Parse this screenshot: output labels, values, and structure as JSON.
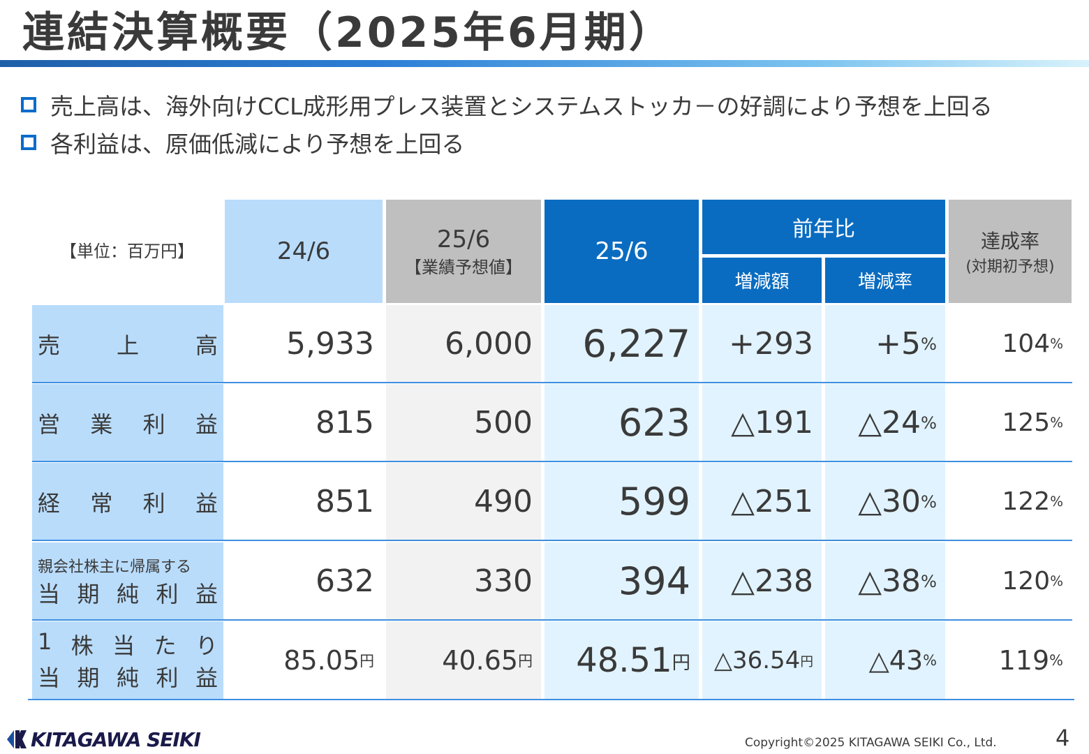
{
  "title": "連結決算概要（2025年6月期）",
  "bullets": [
    "売上高は、海外向けCCL成形用プレス装置とシステムストッカ－の好調により予想を上回る",
    "各利益は、原価低減により予想を上回る"
  ],
  "table": {
    "unit": "【単位：百万円】",
    "headers": {
      "prev": "24/6",
      "forecast": "25/6",
      "forecast_sub": "【業績予想値】",
      "current": "25/6",
      "yoy": "前年比",
      "diff": "増減額",
      "rate": "増減率",
      "achievement": "達成率",
      "achievement_sub": "(対期初予想)"
    },
    "rows": [
      {
        "label_chars": [
          "売",
          "上",
          "高"
        ],
        "prev": "5,933",
        "forecast": "6,000",
        "current": "6,227",
        "diff": "+293",
        "rate": "+5",
        "rate_unit": "%",
        "ach": "104",
        "ach_unit": "%"
      },
      {
        "label_chars": [
          "営",
          "業",
          "利",
          "益"
        ],
        "prev": "815",
        "forecast": "500",
        "current": "623",
        "diff": "△191",
        "rate": "△24",
        "rate_unit": "%",
        "ach": "125",
        "ach_unit": "%"
      },
      {
        "label_chars": [
          "経",
          "常",
          "利",
          "益"
        ],
        "prev": "851",
        "forecast": "490",
        "current": "599",
        "diff": "△251",
        "rate": "△30",
        "rate_unit": "%",
        "ach": "122",
        "ach_unit": "%"
      },
      {
        "label_top": "親会社株主に帰属する",
        "label_chars": [
          "当",
          "期",
          "純",
          "利",
          "益"
        ],
        "prev": "632",
        "forecast": "330",
        "current": "394",
        "diff": "△238",
        "rate": "△38",
        "rate_unit": "%",
        "ach": "120",
        "ach_unit": "%"
      },
      {
        "label_chars_top": [
          "1",
          "株",
          "当",
          "た",
          "り"
        ],
        "label_chars": [
          "当",
          "期",
          "純",
          "利",
          "益"
        ],
        "prev": "85.05",
        "prev_unit": "円",
        "forecast": "40.65",
        "forecast_unit": "円",
        "current": "48.51",
        "current_unit": "円",
        "diff": "△36.54",
        "diff_unit": "円",
        "rate": "△43",
        "rate_unit": "%",
        "ach": "119",
        "ach_unit": "%"
      }
    ]
  },
  "footer": {
    "logo": "KITAGAWA SEIKI",
    "copyright": "Copyright©2025 KITAGAWA SEIKI Co., Ltd.",
    "page": "4"
  },
  "colors": {
    "accent_dark": "#0a6cc0",
    "accent_light": "#b9dcfb",
    "current_col": "#e1f3fe",
    "forecast_col": "#f2f2f2",
    "header_gray": "#bfbfbf"
  }
}
